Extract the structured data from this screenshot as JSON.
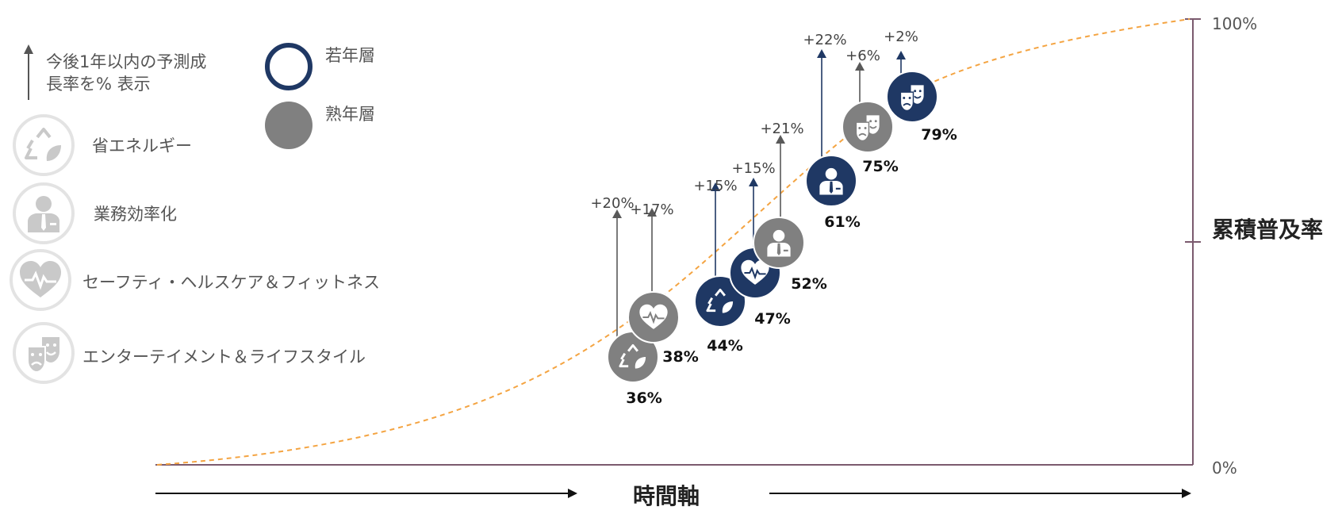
{
  "legend": {
    "arrow_note": "今後1年以内の予測成長率を% 表示",
    "arrow_note_line1": "今後1年以内の予測成",
    "arrow_note_line2": "長率を% 表示",
    "young_label": "若年層",
    "mature_label": "熟年層"
  },
  "categories": [
    {
      "key": "energy",
      "label": "省エネルギー",
      "icon": "recycle-leaf-icon"
    },
    {
      "key": "business",
      "label": "業務効率化",
      "icon": "businessman-icon"
    },
    {
      "key": "health",
      "label": "セーフティ・ヘルスケア＆フィットネス",
      "icon": "heart-pulse-icon"
    },
    {
      "key": "entertainment",
      "label": "エンターテイメント＆ライフスタイル",
      "icon": "theater-masks-icon"
    }
  ],
  "axis": {
    "y_title": "累積普及率",
    "x_title": "時間軸",
    "y_top_label": "100%",
    "y_bottom_label": "0%"
  },
  "colors": {
    "young": "#1f3864",
    "mature": "#808080",
    "curve": "#f4a442",
    "axis_line": "#7b5a6e",
    "arrow_young": "#1f3864",
    "arrow_mature": "#595959"
  },
  "chart_data": {
    "type": "scatter",
    "title": "",
    "xlabel": "時間軸",
    "ylabel": "累積普及率",
    "ylim": [
      0,
      100
    ],
    "curve": "s-curve (cumulative adoption)",
    "series": [
      {
        "name": "若年層",
        "points": [
          {
            "category": "energy",
            "adoption": "44%",
            "growth": "+15%"
          },
          {
            "category": "health",
            "adoption": "47%",
            "growth": "+15%"
          },
          {
            "category": "business",
            "adoption": "61%",
            "growth": "+22%"
          },
          {
            "category": "entertainment",
            "adoption": "79%",
            "growth": "+2%"
          }
        ]
      },
      {
        "name": "熟年層",
        "points": [
          {
            "category": "energy",
            "adoption": "36%",
            "growth": "+20%"
          },
          {
            "category": "health",
            "adoption": "38%",
            "growth": "+17%"
          },
          {
            "category": "business",
            "adoption": "52%",
            "growth": "+21%"
          },
          {
            "category": "entertainment",
            "adoption": "75%",
            "growth": "+6%"
          }
        ]
      }
    ]
  }
}
